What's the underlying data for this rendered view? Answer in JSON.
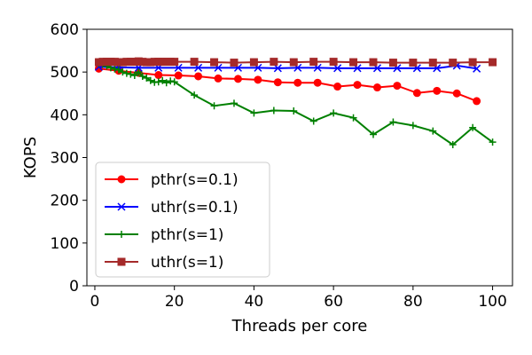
{
  "chart_data": {
    "type": "line",
    "xlabel": "Threads per core",
    "ylabel": "KOPS",
    "xlim": [
      -2,
      105
    ],
    "ylim": [
      0,
      600
    ],
    "xticks": [
      0,
      20,
      40,
      60,
      80,
      100
    ],
    "yticks": [
      0,
      100,
      200,
      300,
      400,
      500,
      600
    ],
    "grid": false,
    "legend_position": "lower-left",
    "series": [
      {
        "name": "pthr(s=0.1)",
        "color": "#ff0000",
        "marker": "circle",
        "x": [
          1,
          6,
          11,
          16,
          21,
          26,
          31,
          36,
          41,
          46,
          51,
          56,
          61,
          66,
          71,
          76,
          81,
          86,
          91,
          96
        ],
        "y": [
          508,
          503,
          498,
          493,
          492,
          490,
          485,
          484,
          482,
          476,
          475,
          475,
          466,
          470,
          464,
          468,
          451,
          456,
          450,
          432
        ]
      },
      {
        "name": "uthr(s=0.1)",
        "color": "#0000ff",
        "marker": "x",
        "x": [
          1,
          6,
          11,
          16,
          21,
          26,
          31,
          36,
          41,
          46,
          51,
          56,
          61,
          66,
          71,
          76,
          81,
          86,
          91,
          96
        ],
        "y": [
          512,
          511,
          510,
          510,
          510,
          510,
          510,
          510,
          510,
          509,
          510,
          510,
          509,
          509,
          509,
          509,
          509,
          509,
          515,
          508
        ]
      },
      {
        "name": "pthr(s=1)",
        "color": "#008000",
        "marker": "plus",
        "x": [
          1,
          2,
          3,
          4,
          5,
          6,
          7,
          8,
          9,
          10,
          11,
          12,
          13,
          14,
          15,
          16,
          17,
          18,
          19,
          20,
          25,
          30,
          35,
          40,
          45,
          50,
          55,
          60,
          65,
          70,
          75,
          80,
          85,
          90,
          95,
          100
        ],
        "y": [
          520,
          518,
          514,
          510,
          507,
          505,
          500,
          497,
          495,
          492,
          500,
          490,
          486,
          480,
          476,
          477,
          480,
          475,
          479,
          477,
          446,
          421,
          427,
          404,
          410,
          409,
          385,
          404,
          393,
          354,
          383,
          375,
          362,
          330,
          370,
          336
        ]
      },
      {
        "name": "uthr(s=1)",
        "color": "#a52a2a",
        "marker": "square",
        "x": [
          1,
          2,
          3,
          4,
          5,
          6,
          7,
          8,
          9,
          10,
          11,
          12,
          13,
          14,
          15,
          16,
          17,
          18,
          19,
          20,
          25,
          30,
          35,
          40,
          45,
          50,
          55,
          60,
          65,
          70,
          75,
          80,
          85,
          90,
          95,
          100
        ],
        "y": [
          523,
          524,
          524,
          524,
          524,
          523,
          523,
          524,
          524,
          524,
          525,
          524,
          523,
          523,
          524,
          524,
          524,
          524,
          524,
          524,
          524,
          523,
          522,
          523,
          524,
          523,
          524,
          524,
          523,
          523,
          522,
          522,
          522,
          522,
          523,
          523
        ]
      }
    ]
  }
}
